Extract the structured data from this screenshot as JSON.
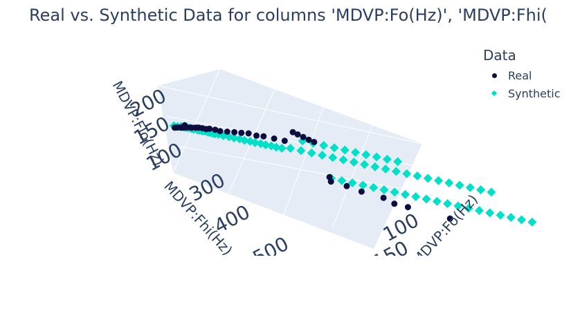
{
  "chart_data": {
    "type": "scatter",
    "title": "Real vs. Synthetic Data for columns 'MDVP:Fo(Hz)', 'MDVP:Fhi(",
    "axes": {
      "x": {
        "label": "MDVP:Fo(Hz)",
        "ticks": [
          "100",
          "150"
        ]
      },
      "y": {
        "label": "MDVP:Fhi(Hz)",
        "ticks": [
          "300",
          "400",
          "500"
        ]
      },
      "z": {
        "label": "MDVP:Flo(Hz)",
        "ticks": [
          "100",
          "150",
          "200"
        ]
      }
    },
    "legend": {
      "title": "Data",
      "position": "top-right"
    },
    "series": [
      {
        "name": "Real",
        "color": "#0d0d40",
        "marker": "circle",
        "points": [
          [
            120,
            130,
            110
          ],
          [
            125,
            140,
            115
          ],
          [
            118,
            135,
            108
          ],
          [
            130,
            145,
            120
          ],
          [
            122,
            138,
            112
          ],
          [
            128,
            142,
            118
          ],
          [
            135,
            150,
            125
          ],
          [
            140,
            160,
            130
          ],
          [
            115,
            128,
            100
          ],
          [
            119,
            132,
            106
          ],
          [
            150,
            170,
            140
          ],
          [
            155,
            175,
            145
          ],
          [
            160,
            180,
            150
          ],
          [
            145,
            165,
            135
          ],
          [
            138,
            155,
            128
          ],
          [
            170,
            190,
            155
          ],
          [
            175,
            200,
            160
          ],
          [
            180,
            210,
            165
          ],
          [
            165,
            185,
            150
          ],
          [
            110,
            125,
            95
          ],
          [
            112,
            127,
            98
          ],
          [
            116,
            131,
            103
          ],
          [
            121,
            137,
            111
          ],
          [
            126,
            141,
            116
          ],
          [
            132,
            148,
            121
          ],
          [
            197,
            206,
            192
          ],
          [
            199,
            210,
            190
          ],
          [
            201,
            215,
            188
          ],
          [
            203,
            220,
            186
          ],
          [
            205,
            225,
            185
          ],
          [
            198,
            260,
            90
          ],
          [
            200,
            280,
            95
          ],
          [
            210,
            300,
            100
          ],
          [
            215,
            330,
            105
          ],
          [
            240,
            360,
            110
          ],
          [
            195,
            240,
            95
          ],
          [
            188,
            250,
            90
          ],
          [
            207,
            320,
            102
          ]
        ]
      },
      {
        "name": "Synthetic",
        "color": "#00e0c8",
        "marker": "diamond",
        "points": [
          [
            115,
            130,
            105
          ],
          [
            120,
            140,
            110
          ],
          [
            125,
            150,
            115
          ],
          [
            130,
            160,
            120
          ],
          [
            135,
            170,
            125
          ],
          [
            140,
            180,
            130
          ],
          [
            145,
            190,
            135
          ],
          [
            150,
            200,
            140
          ],
          [
            155,
            210,
            145
          ],
          [
            160,
            220,
            150
          ],
          [
            118,
            135,
            108
          ],
          [
            123,
            145,
            113
          ],
          [
            128,
            155,
            118
          ],
          [
            133,
            165,
            123
          ],
          [
            138,
            175,
            128
          ],
          [
            143,
            185,
            133
          ],
          [
            148,
            195,
            138
          ],
          [
            153,
            205,
            143
          ],
          [
            158,
            215,
            148
          ],
          [
            163,
            225,
            153
          ],
          [
            110,
            125,
            100
          ],
          [
            112,
            128,
            102
          ],
          [
            114,
            131,
            104
          ],
          [
            116,
            134,
            106
          ],
          [
            119,
            137,
            109
          ],
          [
            121,
            142,
            111
          ],
          [
            124,
            147,
            114
          ],
          [
            127,
            152,
            117
          ],
          [
            129,
            157,
            119
          ],
          [
            131,
            162,
            121
          ],
          [
            170,
            230,
            160
          ],
          [
            175,
            240,
            165
          ],
          [
            180,
            250,
            170
          ],
          [
            185,
            260,
            175
          ],
          [
            190,
            270,
            180
          ],
          [
            195,
            280,
            185
          ],
          [
            200,
            290,
            190
          ],
          [
            205,
            300,
            195
          ],
          [
            210,
            310,
            200
          ],
          [
            215,
            320,
            205
          ],
          [
            220,
            330,
            210
          ],
          [
            225,
            340,
            215
          ],
          [
            230,
            350,
            220
          ],
          [
            235,
            360,
            225
          ],
          [
            240,
            370,
            230
          ],
          [
            245,
            380,
            235
          ],
          [
            250,
            390,
            240
          ],
          [
            255,
            400,
            245
          ],
          [
            260,
            410,
            250
          ],
          [
            265,
            420,
            255
          ],
          [
            190,
            250,
            100
          ],
          [
            195,
            260,
            105
          ],
          [
            200,
            270,
            110
          ],
          [
            205,
            280,
            115
          ],
          [
            210,
            290,
            120
          ],
          [
            215,
            300,
            125
          ],
          [
            220,
            310,
            130
          ],
          [
            225,
            320,
            135
          ],
          [
            230,
            330,
            140
          ],
          [
            235,
            340,
            145
          ],
          [
            240,
            350,
            150
          ],
          [
            245,
            360,
            155
          ],
          [
            250,
            370,
            160
          ],
          [
            255,
            380,
            165
          ],
          [
            260,
            390,
            170
          ],
          [
            265,
            400,
            175
          ],
          [
            270,
            410,
            180
          ],
          [
            275,
            420,
            185
          ],
          [
            280,
            430,
            190
          ],
          [
            285,
            440,
            195
          ],
          [
            195,
            220,
            180
          ],
          [
            200,
            230,
            185
          ],
          [
            205,
            240,
            190
          ],
          [
            210,
            250,
            195
          ],
          [
            215,
            260,
            200
          ],
          [
            220,
            270,
            205
          ],
          [
            225,
            280,
            210
          ],
          [
            230,
            290,
            215
          ],
          [
            235,
            300,
            220
          ],
          [
            240,
            310,
            225
          ]
        ]
      }
    ]
  }
}
